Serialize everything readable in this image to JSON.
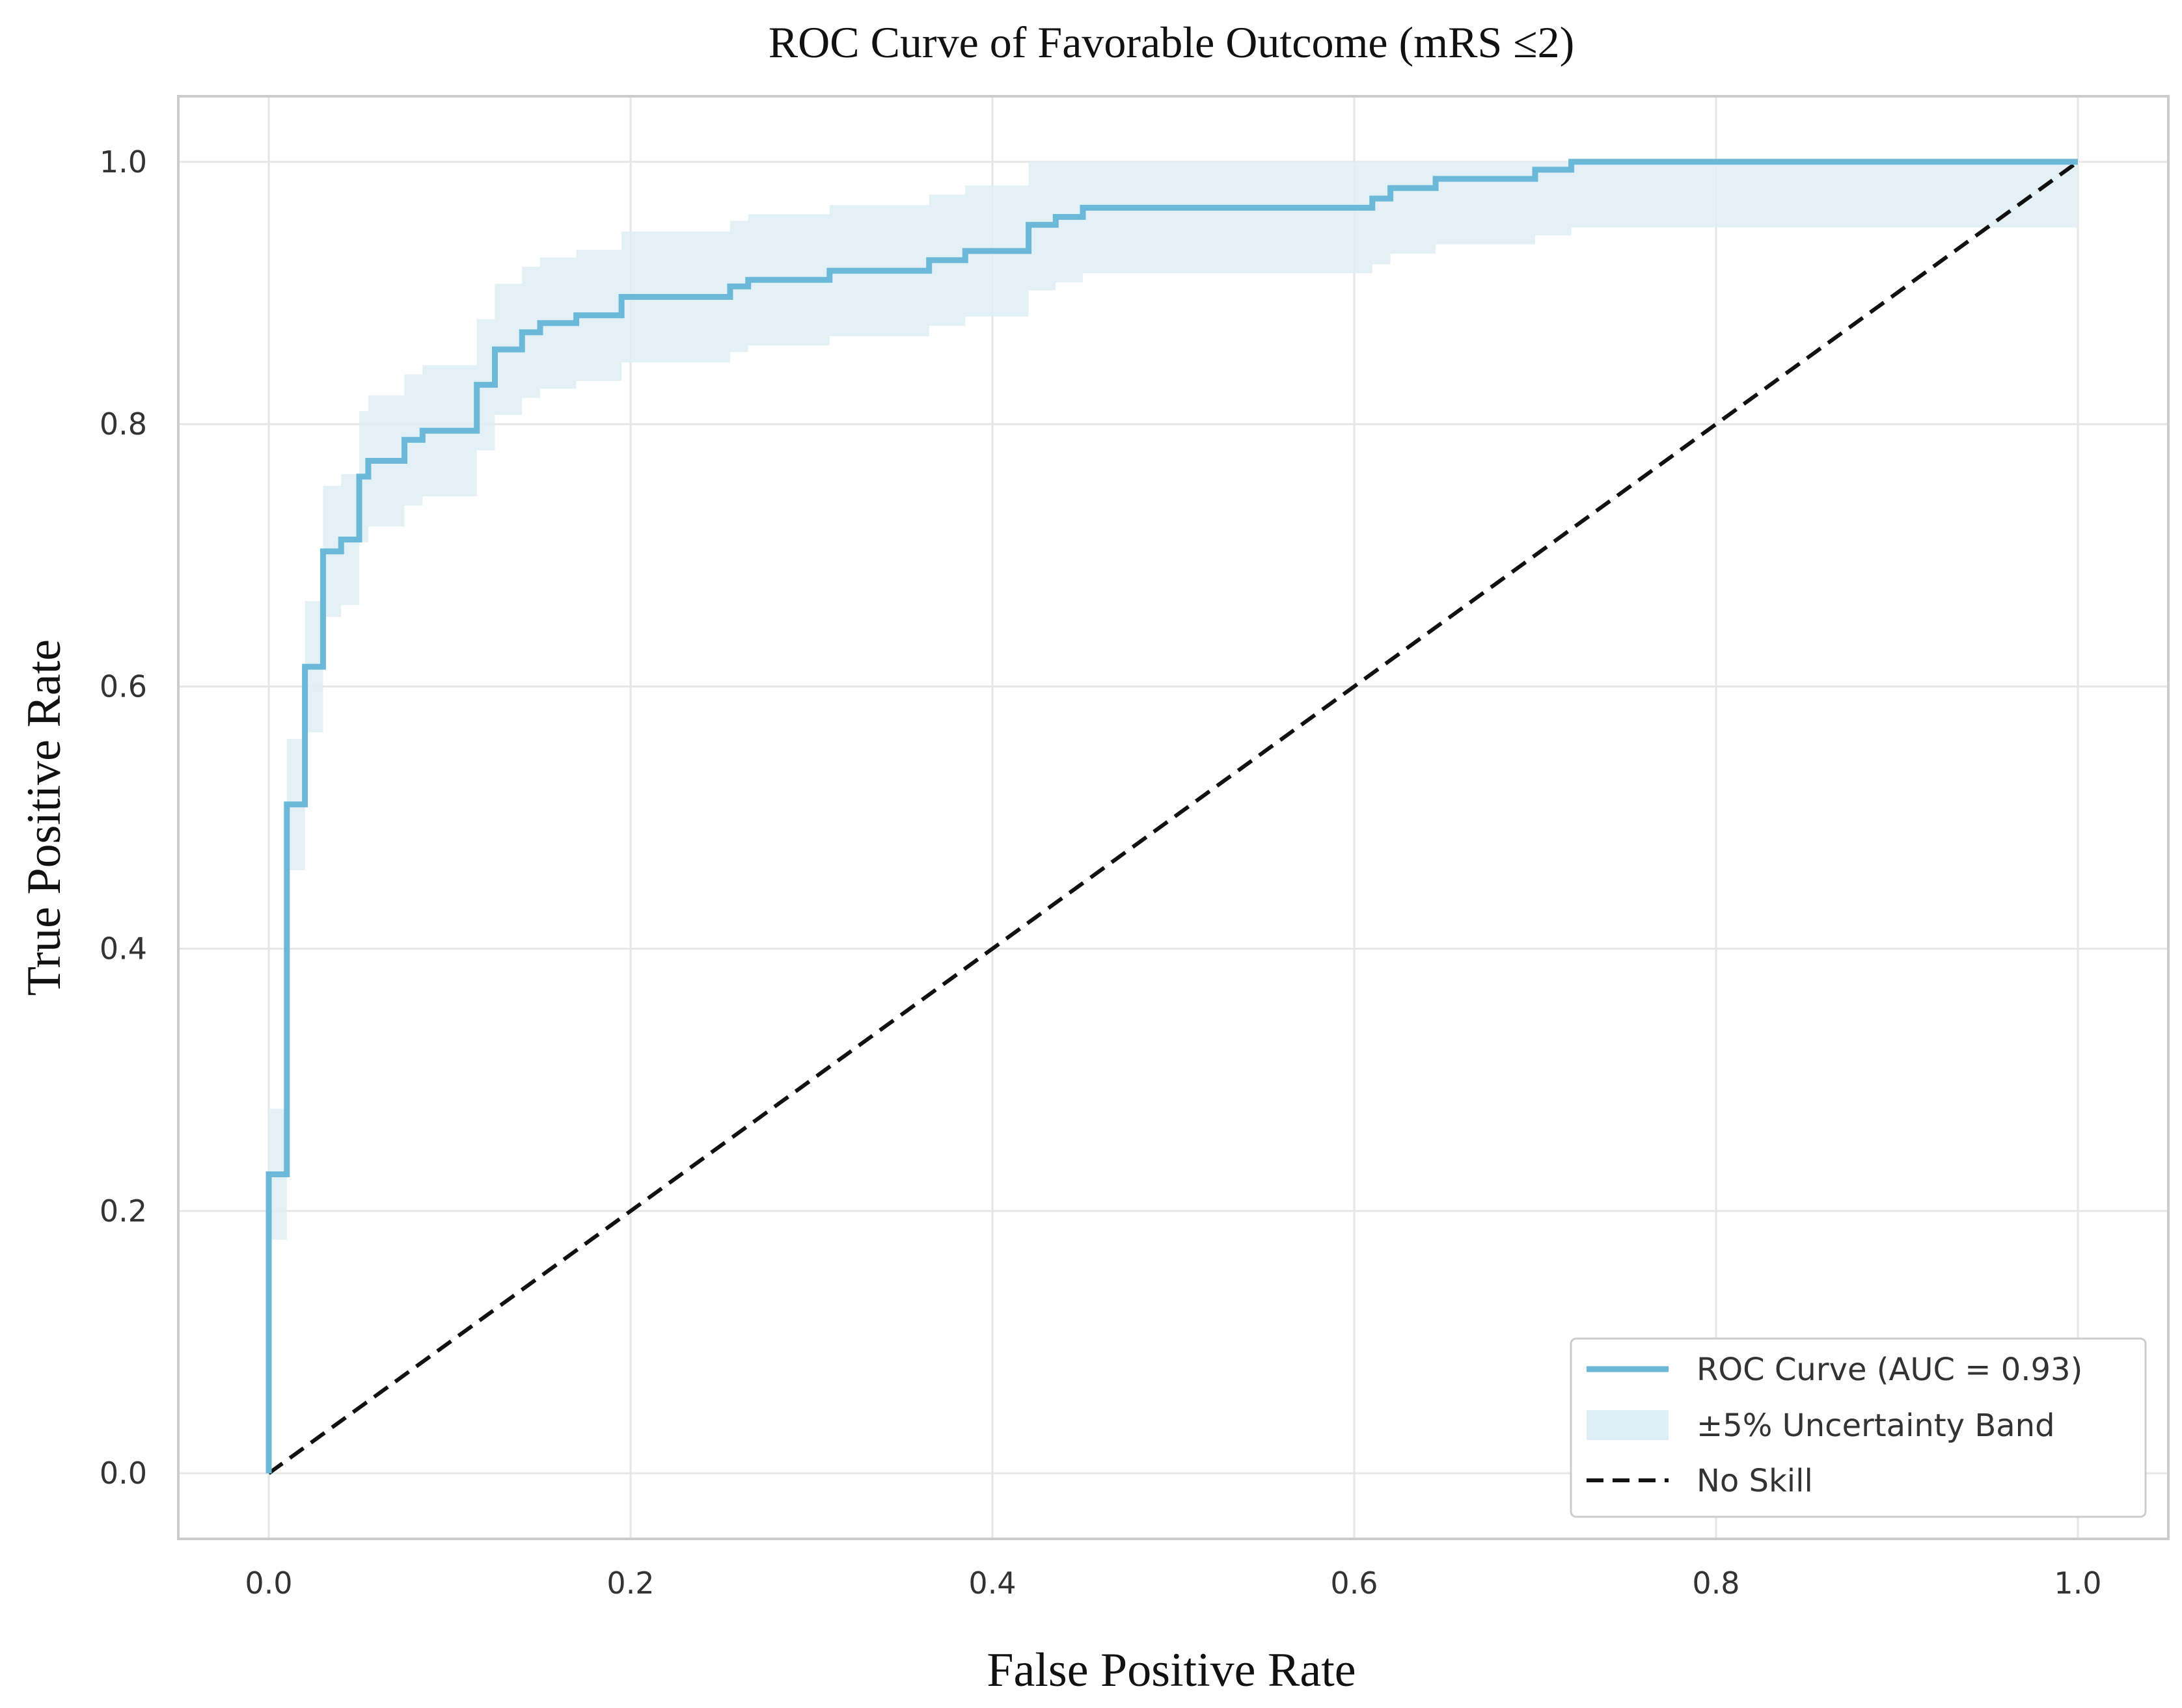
{
  "colors": {
    "roc": "#6bb8d8",
    "band": "#deeef6",
    "noskill": "#111111",
    "grid": "#e6e6e6"
  },
  "chart_data": {
    "type": "line",
    "title": "ROC Curve of Favorable Outcome (mRS  ≤2)",
    "xlabel": "False Positive Rate",
    "ylabel": "True Positive Rate",
    "xlim": [
      -0.05,
      1.05
    ],
    "ylim": [
      -0.05,
      1.05
    ],
    "xticks": [
      0.0,
      0.2,
      0.4,
      0.6,
      0.8,
      1.0
    ],
    "yticks": [
      0.0,
      0.2,
      0.4,
      0.6,
      0.8,
      1.0
    ],
    "xtick_labels": [
      "0.0",
      "0.2",
      "0.4",
      "0.6",
      "0.8",
      "1.0"
    ],
    "ytick_labels": [
      "0.0",
      "0.2",
      "0.4",
      "0.6",
      "0.8",
      "1.0"
    ],
    "grid": true,
    "legend_position": "lower-right",
    "series": [
      {
        "name": "ROC Curve (AUC = 0.93)",
        "kind": "step-line",
        "auc": 0.93,
        "x": [
          0.0,
          0.0,
          0.01,
          0.01,
          0.02,
          0.02,
          0.03,
          0.03,
          0.04,
          0.04,
          0.05,
          0.05,
          0.055,
          0.055,
          0.075,
          0.075,
          0.085,
          0.085,
          0.115,
          0.115,
          0.125,
          0.125,
          0.14,
          0.14,
          0.15,
          0.15,
          0.17,
          0.17,
          0.195,
          0.195,
          0.255,
          0.255,
          0.265,
          0.265,
          0.31,
          0.31,
          0.365,
          0.365,
          0.385,
          0.385,
          0.42,
          0.42,
          0.435,
          0.435,
          0.45,
          0.45,
          0.61,
          0.61,
          0.62,
          0.62,
          0.645,
          0.645,
          0.7,
          0.7,
          0.72,
          0.72,
          1.0
        ],
        "y": [
          0.0,
          0.228,
          0.228,
          0.51,
          0.51,
          0.615,
          0.615,
          0.703,
          0.703,
          0.712,
          0.712,
          0.76,
          0.76,
          0.772,
          0.772,
          0.788,
          0.788,
          0.795,
          0.795,
          0.83,
          0.83,
          0.857,
          0.857,
          0.87,
          0.87,
          0.877,
          0.877,
          0.883,
          0.883,
          0.897,
          0.897,
          0.905,
          0.905,
          0.91,
          0.91,
          0.917,
          0.917,
          0.925,
          0.925,
          0.932,
          0.932,
          0.952,
          0.952,
          0.958,
          0.958,
          0.965,
          0.965,
          0.972,
          0.972,
          0.98,
          0.98,
          0.987,
          0.987,
          0.994,
          0.994,
          1.0,
          1.0
        ]
      },
      {
        "name": "±5% Uncertainty Band",
        "kind": "band",
        "upper_y_offset": 0.05,
        "lower_y_offset": -0.05,
        "clip": [
          0.0,
          1.0
        ]
      },
      {
        "name": "No Skill",
        "kind": "dashed-line",
        "x": [
          0.0,
          1.0
        ],
        "y": [
          0.0,
          1.0
        ]
      }
    ]
  },
  "legend": {
    "items": [
      "ROC Curve (AUC = 0.93)",
      "±5% Uncertainty Band",
      "No Skill"
    ]
  }
}
